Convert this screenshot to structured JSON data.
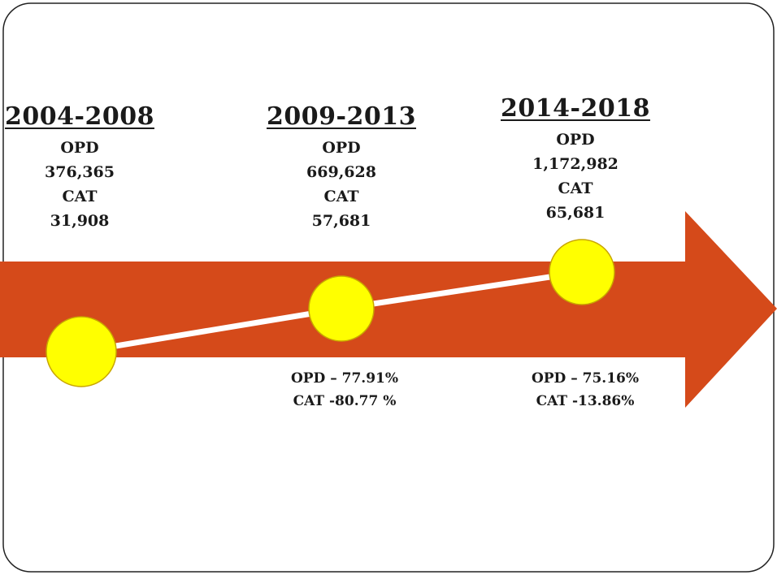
{
  "colors": {
    "arrow": "#d54a1a",
    "marker_fill": "#ffff00",
    "marker_stroke": "#c9a600",
    "connector": "#ffffff",
    "frame": "#222222"
  },
  "periods": [
    {
      "label": "2004-2008",
      "opd_label": "OPD",
      "opd_value": "376,365",
      "cat_label": "CAT",
      "cat_value": "31,908",
      "growth_opd": "",
      "growth_cat": ""
    },
    {
      "label": "2009-2013",
      "opd_label": "OPD",
      "opd_value": "669,628",
      "cat_label": "CAT",
      "cat_value": "57,681",
      "growth_opd": "OPD – 77.91%",
      "growth_cat": "CAT -80.77 %"
    },
    {
      "label": "2014-2018",
      "opd_label": "OPD",
      "opd_value": "1,172,982",
      "cat_label": "CAT",
      "cat_value": "65,681",
      "growth_opd": "OPD – 75.16%",
      "growth_cat": "CAT -13.86%"
    }
  ]
}
